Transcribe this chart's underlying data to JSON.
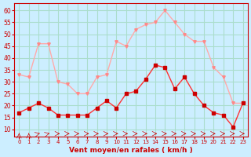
{
  "hours": [
    0,
    1,
    2,
    3,
    4,
    5,
    6,
    7,
    8,
    9,
    10,
    11,
    12,
    13,
    14,
    15,
    16,
    17,
    18,
    19,
    20,
    21,
    22,
    23
  ],
  "wind_avg": [
    17,
    19,
    21,
    19,
    16,
    16,
    16,
    16,
    19,
    22,
    19,
    25,
    26,
    31,
    37,
    36,
    27,
    32,
    25,
    20,
    17,
    16,
    11,
    21
  ],
  "wind_gust": [
    33,
    32,
    46,
    46,
    30,
    29,
    25,
    25,
    32,
    33,
    47,
    45,
    52,
    54,
    55,
    60,
    55,
    50,
    47,
    47,
    36,
    32,
    21,
    21
  ],
  "bg_color": "#cceeff",
  "grid_color": "#aaddcc",
  "line_avg_color": "#ff3333",
  "line_gust_color": "#ffaaaa",
  "marker_avg_color": "#cc0000",
  "marker_gust_color": "#ff8888",
  "xlabel": "Vent moyen/en rafales ( km/h )",
  "ylabel_ticks": [
    10,
    15,
    20,
    25,
    30,
    35,
    40,
    45,
    50,
    55,
    60
  ],
  "ylim": [
    7,
    63
  ],
  "xlim": [
    -0.5,
    23.5
  ],
  "xlabel_color": "#cc0000",
  "tick_color": "#cc0000"
}
